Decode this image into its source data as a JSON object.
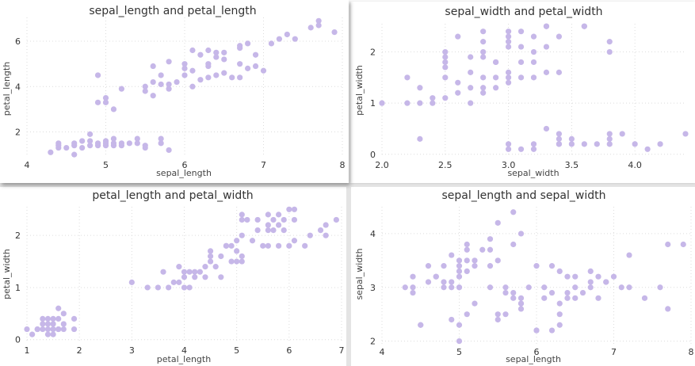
{
  "colors": {
    "point": "#c6b7e8",
    "grid": "#dcdcdc",
    "text": "#333333"
  },
  "chart_data": [
    {
      "type": "scatter",
      "title": "sepal_length and petal_length",
      "xlabel": "sepal_length",
      "ylabel": "petal_length",
      "xlim": [
        4,
        8
      ],
      "ylim": [
        0.9,
        7.05
      ],
      "xticks": [
        4,
        5,
        6,
        7,
        8
      ],
      "yticks": [
        2,
        4,
        6
      ],
      "x": [
        4.3,
        4.4,
        4.4,
        4.4,
        4.5,
        4.6,
        4.6,
        4.6,
        4.7,
        4.7,
        4.8,
        4.8,
        4.8,
        4.9,
        4.9,
        5.0,
        5.0,
        5.0,
        5.1,
        5.1,
        5.1,
        5.2,
        5.2,
        5.3,
        5.4,
        5.4,
        5.5,
        5.5,
        5.7,
        5.7,
        5.8,
        4.9,
        4.9,
        5.0,
        5.0,
        5.1,
        5.2,
        5.5,
        5.5,
        5.6,
        5.6,
        5.7,
        5.7,
        5.8,
        5.8,
        5.9,
        6.0,
        6.0,
        6.1,
        6.1,
        6.2,
        6.3,
        6.4,
        6.5,
        6.6,
        6.7,
        6.7,
        6.8,
        6.9,
        7.0,
        5.6,
        5.8,
        6.0,
        6.1,
        6.2,
        6.3,
        6.3,
        6.4,
        6.4,
        6.5,
        6.7,
        6.7,
        6.8,
        6.9,
        7.1,
        7.2,
        7.3,
        7.4,
        7.6,
        7.7,
        7.7,
        7.9,
        6.3,
        6.5
      ],
      "y": [
        1.1,
        1.3,
        1.4,
        1.5,
        1.3,
        1.0,
        1.4,
        1.5,
        1.3,
        1.6,
        1.4,
        1.6,
        1.9,
        1.4,
        1.5,
        1.4,
        1.5,
        1.6,
        1.4,
        1.5,
        1.7,
        1.4,
        1.5,
        1.5,
        1.5,
        1.7,
        1.3,
        1.4,
        1.5,
        1.7,
        1.2,
        3.3,
        4.5,
        3.3,
        3.5,
        3.0,
        3.9,
        4.0,
        3.8,
        3.6,
        4.2,
        4.1,
        4.5,
        3.9,
        4.1,
        4.2,
        4.5,
        5.0,
        4.0,
        4.7,
        4.3,
        4.9,
        4.5,
        4.6,
        4.4,
        4.4,
        5.0,
        4.8,
        4.9,
        4.7,
        4.9,
        5.1,
        4.8,
        5.6,
        5.4,
        5.0,
        5.6,
        5.3,
        5.5,
        5.2,
        5.7,
        5.8,
        5.9,
        5.4,
        5.9,
        6.1,
        6.3,
        6.1,
        6.6,
        6.7,
        6.9,
        6.4,
        4.4,
        5.5
      ]
    },
    {
      "type": "scatter",
      "title": "sepal_width and petal_width",
      "xlabel": "sepal_width",
      "ylabel": "petal_width",
      "xlim": [
        2.0,
        4.4
      ],
      "ylim": [
        -0.05,
        2.55
      ],
      "xticks": [
        2.0,
        2.5,
        3.0,
        3.5,
        4.0
      ],
      "yticks": [
        0,
        1,
        2
      ],
      "x": [
        2.0,
        2.2,
        2.2,
        2.3,
        2.3,
        2.4,
        2.4,
        2.5,
        2.5,
        2.5,
        2.5,
        2.6,
        2.6,
        2.6,
        2.7,
        2.7,
        2.7,
        2.8,
        2.8,
        2.8,
        2.8,
        2.9,
        2.9,
        2.9,
        3.0,
        3.0,
        3.0,
        3.0,
        3.1,
        3.1,
        3.2,
        3.2,
        3.3,
        3.3,
        3.4,
        3.6,
        2.5,
        2.5,
        2.7,
        2.8,
        2.8,
        2.8,
        2.9,
        3.0,
        3.0,
        3.0,
        3.1,
        3.1,
        3.2,
        3.2,
        3.3,
        3.3,
        3.4,
        3.6,
        3.8,
        3.8,
        2.3,
        3.0,
        3.1,
        3.2,
        3.3,
        3.4,
        3.4,
        3.4,
        3.5,
        3.6,
        3.7,
        3.8,
        3.8,
        3.9,
        4.0,
        4.1,
        4.2,
        4.4,
        3.0,
        3.2,
        3.4,
        3.5,
        3.8
      ],
      "y": [
        1.0,
        1.0,
        1.5,
        1.0,
        1.3,
        1.0,
        1.1,
        1.1,
        1.5,
        1.7,
        1.9,
        1.2,
        1.4,
        2.3,
        1.0,
        1.3,
        1.6,
        1.2,
        1.5,
        2.0,
        2.4,
        1.3,
        1.5,
        1.8,
        1.4,
        1.5,
        2.1,
        2.4,
        1.5,
        2.4,
        1.5,
        2.0,
        1.6,
        2.5,
        1.6,
        2.5,
        2.0,
        1.8,
        1.9,
        1.9,
        2.2,
        1.3,
        1.8,
        1.6,
        2.2,
        2.3,
        2.1,
        1.8,
        2.3,
        1.8,
        2.5,
        2.1,
        2.3,
        2.5,
        2.2,
        2.0,
        0.3,
        0.2,
        0.1,
        0.2,
        0.5,
        0.2,
        0.3,
        0.4,
        0.2,
        0.2,
        0.2,
        0.3,
        0.4,
        0.4,
        0.2,
        0.1,
        0.2,
        0.4,
        0.1,
        0.1,
        0.2,
        0.3,
        0.2
      ]
    },
    {
      "type": "scatter",
      "title": "petal_length and petal_width",
      "xlabel": "petal_length",
      "ylabel": "petal_width",
      "xlim": [
        1,
        7
      ],
      "ylim": [
        -0.05,
        2.55
      ],
      "xticks": [
        1,
        2,
        3,
        4,
        5,
        6,
        7
      ],
      "yticks": [
        0,
        1,
        2
      ],
      "x": [
        1.0,
        1.1,
        1.2,
        1.2,
        1.3,
        1.3,
        1.3,
        1.4,
        1.4,
        1.4,
        1.4,
        1.5,
        1.5,
        1.5,
        1.5,
        1.5,
        1.6,
        1.6,
        1.6,
        1.6,
        1.7,
        1.7,
        1.7,
        1.9,
        1.9,
        3.0,
        3.3,
        3.5,
        3.6,
        3.7,
        3.8,
        3.9,
        3.9,
        4.0,
        4.0,
        4.0,
        4.1,
        4.1,
        4.2,
        4.2,
        4.3,
        4.4,
        4.4,
        4.5,
        4.5,
        4.6,
        4.7,
        4.7,
        4.8,
        4.9,
        5.0,
        4.5,
        4.8,
        4.9,
        5.0,
        5.0,
        5.1,
        5.1,
        5.1,
        5.1,
        5.2,
        5.3,
        5.4,
        5.5,
        5.6,
        5.6,
        5.6,
        5.7,
        5.7,
        5.8,
        5.8,
        5.8,
        5.9,
        6.0,
        6.0,
        6.1,
        6.1,
        6.3,
        6.4,
        6.6,
        6.7,
        6.7,
        6.9,
        5.1,
        5.4,
        5.6,
        5.9,
        6.1
      ],
      "y": [
        0.2,
        0.1,
        0.2,
        0.2,
        0.2,
        0.3,
        0.4,
        0.1,
        0.2,
        0.3,
        0.4,
        0.1,
        0.2,
        0.3,
        0.4,
        0.2,
        0.2,
        0.4,
        0.6,
        0.2,
        0.2,
        0.3,
        0.5,
        0.2,
        0.4,
        1.1,
        1.0,
        1.0,
        1.3,
        1.0,
        1.1,
        1.1,
        1.4,
        1.0,
        1.2,
        1.3,
        1.0,
        1.3,
        1.2,
        1.3,
        1.3,
        1.2,
        1.4,
        1.5,
        1.6,
        1.4,
        1.2,
        1.6,
        1.8,
        1.5,
        1.7,
        1.7,
        1.8,
        1.8,
        1.5,
        1.9,
        1.5,
        2.0,
        2.4,
        1.6,
        2.3,
        1.9,
        2.1,
        1.8,
        1.8,
        2.1,
        2.2,
        2.1,
        2.3,
        1.8,
        2.2,
        2.4,
        2.3,
        1.8,
        2.5,
        1.9,
        2.3,
        1.8,
        2.0,
        2.1,
        2.0,
        2.2,
        2.3,
        2.3,
        2.3,
        2.4,
        2.1,
        2.5
      ]
    },
    {
      "type": "scatter",
      "title": "sepal_length and sepal_width",
      "xlabel": "sepal_length",
      "ylabel": "sepal_width",
      "xlim": [
        4,
        8
      ],
      "ylim": [
        1.95,
        4.5
      ],
      "xticks": [
        4,
        5,
        6,
        7,
        8
      ],
      "yticks": [
        2,
        3,
        4
      ],
      "x": [
        4.3,
        4.4,
        4.4,
        4.4,
        4.5,
        4.6,
        4.6,
        4.7,
        4.7,
        4.8,
        4.8,
        4.8,
        4.9,
        4.9,
        4.9,
        5.0,
        5.0,
        5.0,
        5.0,
        5.0,
        5.1,
        5.1,
        5.1,
        5.1,
        5.2,
        5.2,
        5.3,
        5.4,
        5.4,
        5.4,
        5.5,
        5.5,
        5.7,
        5.7,
        5.8,
        5.8,
        4.9,
        5.0,
        5.0,
        5.1,
        5.2,
        5.4,
        5.5,
        5.5,
        5.6,
        5.6,
        5.7,
        5.7,
        5.8,
        5.8,
        5.9,
        6.0,
        6.0,
        6.1,
        6.2,
        6.2,
        6.3,
        6.3,
        6.4,
        6.5,
        6.6,
        6.7,
        6.8,
        6.9,
        7.0,
        5.8,
        6.0,
        6.1,
        6.2,
        6.3,
        6.4,
        6.4,
        6.5,
        6.7,
        6.7,
        6.8,
        6.9,
        7.1,
        7.2,
        7.2,
        7.4,
        7.6,
        7.7,
        7.7,
        7.9,
        6.3,
        6.5,
        5.6,
        5.0,
        4.5
      ],
      "y": [
        3.0,
        2.9,
        3.0,
        3.2,
        2.3,
        3.1,
        3.4,
        3.2,
        3.2,
        3.0,
        3.1,
        3.4,
        3.0,
        3.1,
        3.6,
        3.0,
        3.2,
        3.3,
        3.4,
        3.5,
        3.3,
        3.5,
        3.7,
        3.8,
        3.4,
        3.5,
        3.7,
        3.4,
        3.7,
        3.9,
        3.5,
        4.2,
        3.8,
        4.4,
        4.0,
        2.7,
        2.4,
        2.0,
        2.3,
        2.5,
        2.7,
        3.0,
        2.4,
        2.5,
        2.9,
        3.0,
        2.8,
        2.9,
        2.6,
        2.7,
        3.0,
        2.2,
        3.4,
        2.8,
        2.2,
        2.9,
        2.3,
        3.3,
        2.9,
        2.8,
        2.9,
        3.1,
        2.8,
        3.1,
        3.2,
        2.8,
        2.2,
        3.0,
        3.4,
        2.5,
        2.8,
        3.2,
        3.0,
        3.3,
        3.0,
        3.2,
        3.1,
        3.0,
        3.6,
        3.0,
        2.8,
        3.0,
        3.8,
        2.6,
        3.8,
        2.7,
        3.2,
        2.5,
        3.0,
        2.3
      ]
    }
  ]
}
